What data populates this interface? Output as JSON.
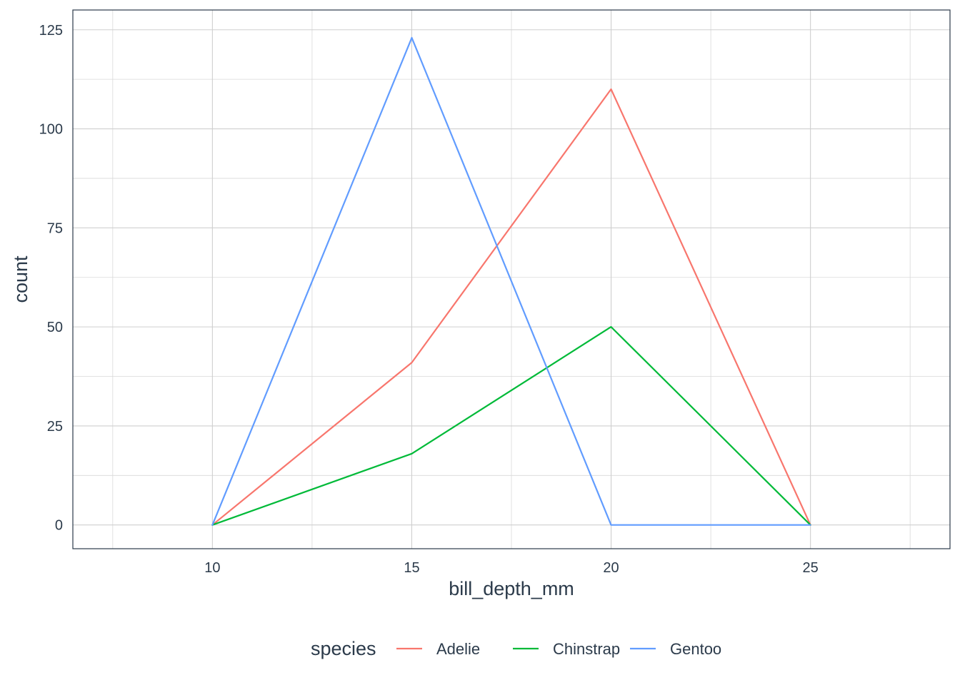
{
  "chart_data": {
    "type": "line",
    "xlabel": "bill_depth_mm",
    "ylabel": "count",
    "xlim": [
      6.5,
      28.5
    ],
    "ylim": [
      -6,
      130
    ],
    "x_ticks": [
      10,
      15,
      20,
      25
    ],
    "y_ticks": [
      0,
      25,
      50,
      75,
      100,
      125
    ],
    "grid": true,
    "legend": {
      "title": "species",
      "position": "bottom"
    },
    "series": [
      {
        "name": "Adelie",
        "color": "#F8766D",
        "x": [
          10,
          15,
          20,
          25
        ],
        "y": [
          0,
          41,
          110,
          0
        ]
      },
      {
        "name": "Chinstrap",
        "color": "#00BA38",
        "x": [
          10,
          15,
          20,
          25
        ],
        "y": [
          0,
          18,
          50,
          0
        ]
      },
      {
        "name": "Gentoo",
        "color": "#619CFF",
        "x": [
          10,
          15,
          20,
          25
        ],
        "y": [
          0,
          123,
          0,
          0
        ]
      }
    ]
  }
}
